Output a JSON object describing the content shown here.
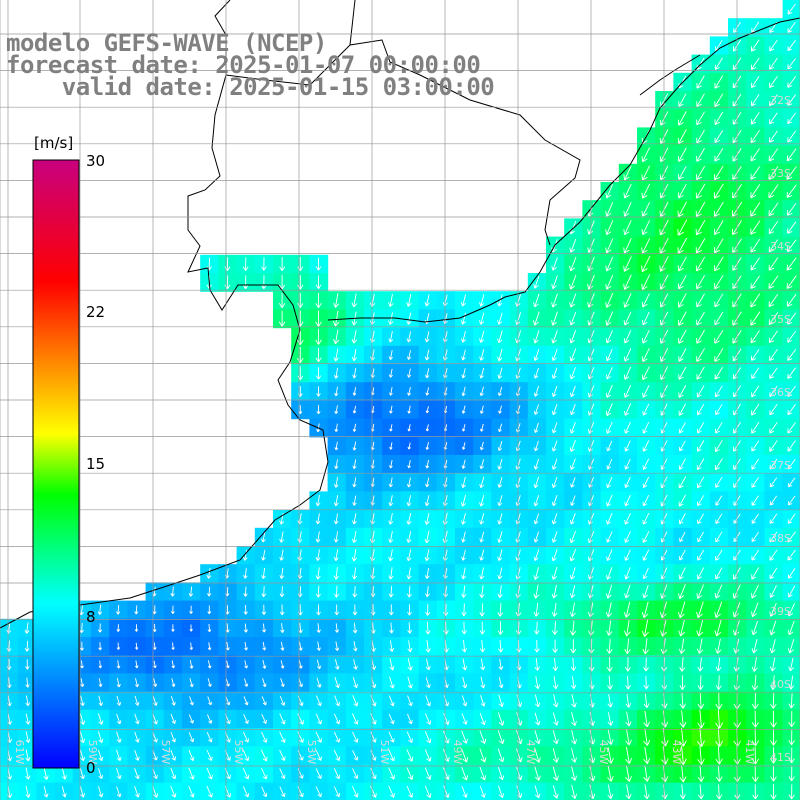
{
  "title": {
    "line1": "modelo GEFS-WAVE (NCEP)",
    "line2": "forecast date: 2025-01-07 00:00:00",
    "line3": "    valid date: 2025-01-15 03:00:00"
  },
  "colorbar": {
    "unit": "[m/s]",
    "min": 0,
    "max": 30,
    "ticks": [
      "30",
      "22",
      "15",
      "8",
      "0"
    ],
    "tick_values": [
      30,
      22,
      15,
      8,
      0
    ],
    "colors": [
      "#0000ff",
      "#00ffff",
      "#00ff00",
      "#ffff00",
      "#ff0000",
      "#c8007f"
    ]
  },
  "grid": {
    "lon_labels": [
      "61W",
      "59W",
      "57W",
      "55W",
      "53W",
      "51W",
      "49W",
      "47W",
      "45W",
      "43W",
      "41W"
    ],
    "lat_labels": [
      "32S",
      "33S",
      "34S",
      "35S",
      "36S",
      "37S",
      "38S",
      "39S",
      "40S",
      "41S"
    ]
  },
  "chart_data": {
    "type": "heatmap",
    "title": "modelo GEFS-WAVE (NCEP)",
    "variable_unit": "m/s",
    "color_range": [
      0,
      30
    ],
    "lon_range": [
      -62,
      -40
    ],
    "lat_range": [
      -41.5,
      -30.5
    ],
    "wind_direction_general": "toward south / south-west",
    "speed_regions": [
      {
        "area": "south-east Brazil coast (north-east of plot)",
        "speed_range": [
          10,
          13
        ]
      },
      {
        "area": "Rio de la Plata estuary",
        "speed_range": [
          10,
          13
        ]
      },
      {
        "area": "off Uruguay coast",
        "speed_range": [
          2,
          6
        ]
      },
      {
        "area": "central South Atlantic",
        "speed_range": [
          6,
          9
        ]
      },
      {
        "area": "south-east corner",
        "speed_range": [
          13,
          15
        ]
      }
    ]
  }
}
